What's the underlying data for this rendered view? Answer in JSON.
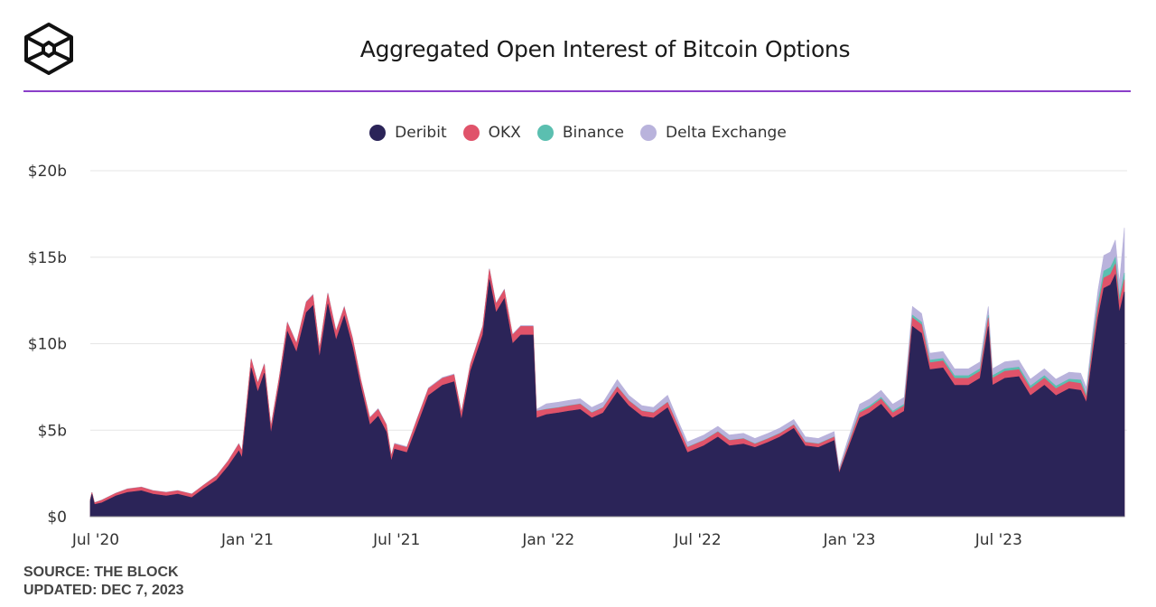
{
  "title": "Aggregated Open Interest of Bitcoin Options",
  "footer": {
    "source": "SOURCE: THE BLOCK",
    "updated": "UPDATED: DEC 7, 2023"
  },
  "chart_data": {
    "type": "area",
    "stacked": true,
    "title": "Aggregated Open Interest of Bitcoin Options",
    "xlabel": "",
    "ylabel": "",
    "ylim": [
      0,
      20
    ],
    "yticks": [
      {
        "v": 0,
        "label": "$0"
      },
      {
        "v": 5,
        "label": "$5b"
      },
      {
        "v": 10,
        "label": "$10b"
      },
      {
        "v": 15,
        "label": "$15b"
      },
      {
        "v": 20,
        "label": "$20b"
      }
    ],
    "xticks": [
      {
        "d": "2020-07-01",
        "label": "Jul '20"
      },
      {
        "d": "2021-01-01",
        "label": "Jan '21"
      },
      {
        "d": "2021-07-01",
        "label": "Jul '21"
      },
      {
        "d": "2022-01-01",
        "label": "Jan '22"
      },
      {
        "d": "2022-07-01",
        "label": "Jul '22"
      },
      {
        "d": "2023-01-01",
        "label": "Jan '23"
      },
      {
        "d": "2023-07-01",
        "label": "Jul '23"
      }
    ],
    "xrange": [
      "2020-07-01",
      "2023-12-07"
    ],
    "grid": true,
    "legend_position": "top-center",
    "series": [
      {
        "name": "Deribit",
        "color": "#2b2458"
      },
      {
        "name": "OKX",
        "color": "#e0536a"
      },
      {
        "name": "Binance",
        "color": "#5bbfb0"
      },
      {
        "name": "Delta Exchange",
        "color": "#b9b3dc"
      }
    ],
    "points_columns": [
      "date",
      "Deribit",
      "OKX",
      "Binance",
      "Delta Exchange"
    ],
    "points": [
      [
        "2020-07-01",
        0.9,
        0.1,
        0,
        0.02
      ],
      [
        "2020-07-03",
        1.3,
        0.1,
        0,
        0.02
      ],
      [
        "2020-07-06",
        0.7,
        0.1,
        0,
        0.02
      ],
      [
        "2020-07-15",
        0.8,
        0.15,
        0,
        0.02
      ],
      [
        "2020-08-01",
        1.2,
        0.15,
        0,
        0.02
      ],
      [
        "2020-08-15",
        1.4,
        0.2,
        0,
        0.02
      ],
      [
        "2020-09-01",
        1.5,
        0.2,
        0,
        0.02
      ],
      [
        "2020-09-15",
        1.3,
        0.2,
        0,
        0.02
      ],
      [
        "2020-10-01",
        1.2,
        0.2,
        0,
        0.02
      ],
      [
        "2020-10-15",
        1.3,
        0.2,
        0,
        0.02
      ],
      [
        "2020-11-01",
        1.1,
        0.2,
        0,
        0.02
      ],
      [
        "2020-11-15",
        1.6,
        0.2,
        0,
        0.02
      ],
      [
        "2020-12-01",
        2.1,
        0.25,
        0,
        0.03
      ],
      [
        "2020-12-15",
        2.9,
        0.3,
        0,
        0.03
      ],
      [
        "2020-12-28",
        3.8,
        0.4,
        0,
        0.03
      ],
      [
        "2021-01-01",
        3.4,
        0.4,
        0,
        0.03
      ],
      [
        "2021-01-12",
        8.6,
        0.5,
        0,
        0.05
      ],
      [
        "2021-01-20",
        7.2,
        0.5,
        0,
        0.05
      ],
      [
        "2021-01-28",
        8.3,
        0.5,
        0,
        0.05
      ],
      [
        "2021-02-05",
        4.8,
        0.4,
        0,
        0.05
      ],
      [
        "2021-02-15",
        7.6,
        0.4,
        0,
        0.05
      ],
      [
        "2021-02-25",
        10.7,
        0.5,
        0,
        0.05
      ],
      [
        "2021-03-08",
        9.5,
        0.5,
        0,
        0.05
      ],
      [
        "2021-03-20",
        11.8,
        0.6,
        0,
        0.05
      ],
      [
        "2021-03-28",
        12.2,
        0.6,
        0,
        0.05
      ],
      [
        "2021-04-05",
        9.2,
        0.5,
        0,
        0.05
      ],
      [
        "2021-04-15",
        12.3,
        0.6,
        0,
        0.05
      ],
      [
        "2021-04-25",
        10.2,
        0.5,
        0,
        0.05
      ],
      [
        "2021-05-05",
        11.6,
        0.5,
        0,
        0.05
      ],
      [
        "2021-05-15",
        9.8,
        0.5,
        0,
        0.05
      ],
      [
        "2021-05-25",
        7.5,
        0.4,
        0,
        0.05
      ],
      [
        "2021-06-05",
        5.3,
        0.4,
        0,
        0.05
      ],
      [
        "2021-06-15",
        5.8,
        0.4,
        0,
        0.05
      ],
      [
        "2021-06-25",
        4.9,
        0.4,
        0,
        0.05
      ],
      [
        "2021-07-01",
        3.2,
        0.3,
        0,
        0.05
      ],
      [
        "2021-07-05",
        3.9,
        0.3,
        0,
        0.05
      ],
      [
        "2021-07-20",
        3.7,
        0.3,
        0,
        0.05
      ],
      [
        "2021-08-01",
        5.2,
        0.4,
        0,
        0.05
      ],
      [
        "2021-08-15",
        7.0,
        0.4,
        0,
        0.05
      ],
      [
        "2021-09-01",
        7.6,
        0.4,
        0,
        0.05
      ],
      [
        "2021-09-15",
        7.8,
        0.4,
        0,
        0.05
      ],
      [
        "2021-09-24",
        5.6,
        0.4,
        0,
        0.05
      ],
      [
        "2021-10-05",
        8.4,
        0.4,
        0,
        0.05
      ],
      [
        "2021-10-20",
        10.5,
        0.5,
        0,
        0.05
      ],
      [
        "2021-10-28",
        13.7,
        0.6,
        0,
        0.05
      ],
      [
        "2021-11-05",
        11.8,
        0.5,
        0,
        0.05
      ],
      [
        "2021-11-15",
        12.6,
        0.5,
        0,
        0.05
      ],
      [
        "2021-11-25",
        10.0,
        0.5,
        0,
        0.05
      ],
      [
        "2021-12-05",
        10.5,
        0.5,
        0,
        0.05
      ],
      [
        "2021-12-20",
        10.5,
        0.5,
        0,
        0.05
      ],
      [
        "2021-12-24",
        5.7,
        0.4,
        0,
        0.1
      ],
      [
        "2022-01-05",
        5.9,
        0.3,
        0.02,
        0.3
      ],
      [
        "2022-01-20",
        6.0,
        0.3,
        0.02,
        0.3
      ],
      [
        "2022-02-01",
        6.1,
        0.3,
        0.02,
        0.3
      ],
      [
        "2022-02-15",
        6.2,
        0.3,
        0.02,
        0.3
      ],
      [
        "2022-03-01",
        5.7,
        0.3,
        0.02,
        0.3
      ],
      [
        "2022-03-15",
        6.0,
        0.3,
        0.02,
        0.3
      ],
      [
        "2022-04-01",
        7.2,
        0.3,
        0.02,
        0.4
      ],
      [
        "2022-04-15",
        6.4,
        0.3,
        0.02,
        0.3
      ],
      [
        "2022-05-01",
        5.8,
        0.3,
        0.02,
        0.3
      ],
      [
        "2022-05-15",
        5.7,
        0.3,
        0.02,
        0.3
      ],
      [
        "2022-06-01",
        6.3,
        0.3,
        0.02,
        0.4
      ],
      [
        "2022-06-15",
        4.8,
        0.3,
        0.02,
        0.3
      ],
      [
        "2022-06-25",
        3.7,
        0.3,
        0.02,
        0.3
      ],
      [
        "2022-07-15",
        4.1,
        0.3,
        0.02,
        0.3
      ],
      [
        "2022-08-01",
        4.6,
        0.3,
        0.02,
        0.3
      ],
      [
        "2022-08-15",
        4.1,
        0.3,
        0.02,
        0.3
      ],
      [
        "2022-09-01",
        4.2,
        0.3,
        0.02,
        0.3
      ],
      [
        "2022-09-15",
        4.0,
        0.2,
        0.02,
        0.3
      ],
      [
        "2022-10-01",
        4.3,
        0.2,
        0.02,
        0.3
      ],
      [
        "2022-10-15",
        4.6,
        0.2,
        0.02,
        0.3
      ],
      [
        "2022-11-01",
        5.1,
        0.2,
        0.02,
        0.3
      ],
      [
        "2022-11-15",
        4.1,
        0.2,
        0.02,
        0.3
      ],
      [
        "2022-12-01",
        4.0,
        0.2,
        0.02,
        0.3
      ],
      [
        "2022-12-20",
        4.4,
        0.2,
        0.02,
        0.3
      ],
      [
        "2022-12-26",
        2.5,
        0.1,
        0.02,
        0.2
      ],
      [
        "2023-01-05",
        3.8,
        0.2,
        0.05,
        0.3
      ],
      [
        "2023-01-20",
        5.7,
        0.3,
        0.1,
        0.4
      ],
      [
        "2023-02-01",
        6.0,
        0.3,
        0.1,
        0.4
      ],
      [
        "2023-02-15",
        6.5,
        0.3,
        0.1,
        0.4
      ],
      [
        "2023-03-01",
        5.7,
        0.3,
        0.1,
        0.4
      ],
      [
        "2023-03-15",
        6.1,
        0.3,
        0.1,
        0.4
      ],
      [
        "2023-03-25",
        11.0,
        0.5,
        0.15,
        0.5
      ],
      [
        "2023-04-05",
        10.6,
        0.5,
        0.15,
        0.5
      ],
      [
        "2023-04-15",
        8.5,
        0.4,
        0.15,
        0.4
      ],
      [
        "2023-05-01",
        8.6,
        0.4,
        0.15,
        0.4
      ],
      [
        "2023-05-15",
        7.6,
        0.4,
        0.15,
        0.4
      ],
      [
        "2023-06-01",
        7.6,
        0.4,
        0.15,
        0.4
      ],
      [
        "2023-06-15",
        8.0,
        0.4,
        0.15,
        0.4
      ],
      [
        "2023-06-25",
        11.0,
        0.5,
        0.15,
        0.5
      ],
      [
        "2023-06-30",
        7.6,
        0.4,
        0.15,
        0.4
      ],
      [
        "2023-07-15",
        8.0,
        0.4,
        0.15,
        0.4
      ],
      [
        "2023-08-01",
        8.1,
        0.4,
        0.15,
        0.4
      ],
      [
        "2023-08-15",
        7.0,
        0.4,
        0.15,
        0.4
      ],
      [
        "2023-09-01",
        7.6,
        0.4,
        0.15,
        0.4
      ],
      [
        "2023-09-15",
        7.0,
        0.4,
        0.15,
        0.4
      ],
      [
        "2023-10-01",
        7.4,
        0.4,
        0.15,
        0.4
      ],
      [
        "2023-10-15",
        7.3,
        0.4,
        0.2,
        0.4
      ],
      [
        "2023-10-22",
        6.6,
        0.3,
        0.15,
        0.4
      ],
      [
        "2023-10-30",
        9.5,
        0.5,
        0.3,
        0.5
      ],
      [
        "2023-11-05",
        11.5,
        0.6,
        0.3,
        0.7
      ],
      [
        "2023-11-12",
        13.2,
        0.6,
        0.4,
        0.9
      ],
      [
        "2023-11-20",
        13.4,
        0.6,
        0.4,
        0.9
      ],
      [
        "2023-11-26",
        14.0,
        0.6,
        0.4,
        1.0
      ],
      [
        "2023-12-01",
        11.8,
        0.6,
        0.3,
        0.8
      ],
      [
        "2023-12-07",
        13.0,
        0.7,
        0.4,
        2.6
      ]
    ]
  }
}
